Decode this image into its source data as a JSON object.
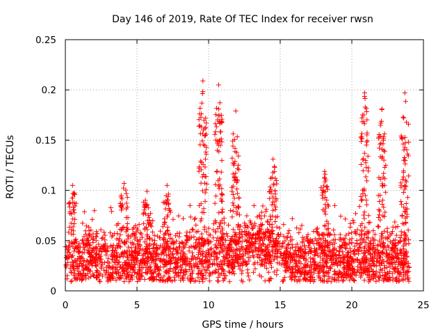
{
  "chart_data": {
    "type": "scatter",
    "title": "Day 146 of 2019, Rate Of TEC Index for receiver rwsn",
    "xlabel": "GPS time / hours",
    "ylabel": "ROTI / TECUs",
    "xlim": [
      0,
      25
    ],
    "ylim": [
      0,
      0.25
    ],
    "xticks": [
      "0",
      "5",
      "10",
      "15",
      "20",
      "25"
    ],
    "yticks": [
      "0",
      "0.05",
      "0.1",
      "0.15",
      "0.2",
      "0.25"
    ],
    "grid": true,
    "legend": "none",
    "marker": "plus",
    "color": "#ff0000",
    "series": [
      {
        "name": "ROTI",
        "description": "dense scatter of ROTI values, mostly 0.01–0.07 TECU/min across 0–24 h with spikes",
        "peaks": [
          {
            "x": 0.5,
            "y": 0.105
          },
          {
            "x": 4.1,
            "y": 0.107
          },
          {
            "x": 5.7,
            "y": 0.099
          },
          {
            "x": 7.1,
            "y": 0.105
          },
          {
            "x": 9.6,
            "y": 0.209
          },
          {
            "x": 10.7,
            "y": 0.205
          },
          {
            "x": 11.9,
            "y": 0.179
          },
          {
            "x": 14.5,
            "y": 0.131
          },
          {
            "x": 18.1,
            "y": 0.119
          },
          {
            "x": 20.9,
            "y": 0.197
          },
          {
            "x": 22.1,
            "y": 0.181
          },
          {
            "x": 23.7,
            "y": 0.197
          }
        ]
      }
    ]
  }
}
